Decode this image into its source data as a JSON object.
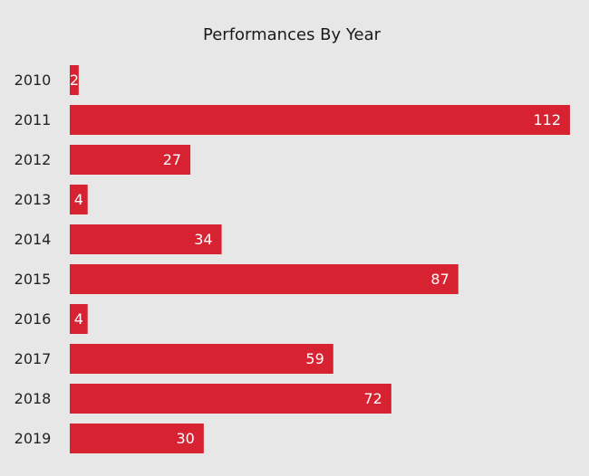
{
  "chart_data": {
    "type": "bar",
    "orientation": "horizontal",
    "title": "Performances By Year",
    "xlabel": "",
    "ylabel": "",
    "categories": [
      "2010",
      "2011",
      "2012",
      "2013",
      "2014",
      "2015",
      "2016",
      "2017",
      "2018",
      "2019"
    ],
    "values": [
      2,
      112,
      27,
      4,
      34,
      87,
      4,
      59,
      72,
      30
    ],
    "xlim": [
      0,
      112
    ],
    "grid": false,
    "legend": "none",
    "colors": {
      "bar": "#d72331",
      "value_label": "#ffffff",
      "background": "#e8e7e7",
      "text": "#222222"
    }
  }
}
